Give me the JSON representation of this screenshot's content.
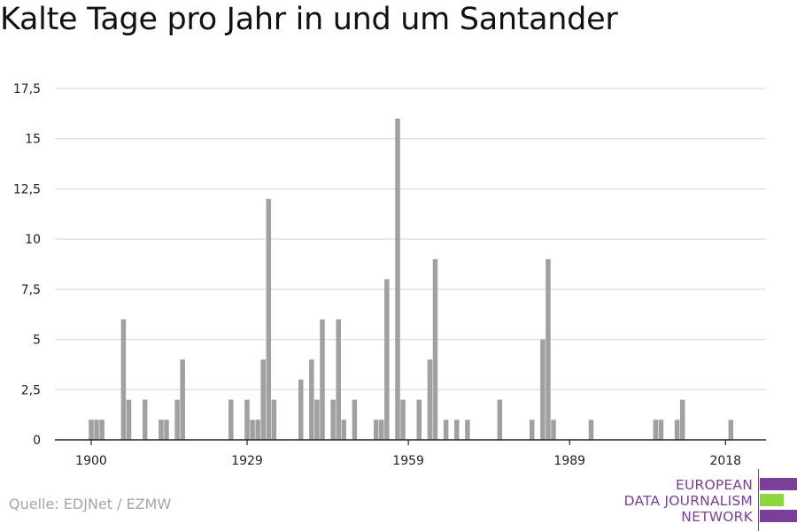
{
  "title": "Kalte Tage pro Jahr in und um Santander",
  "source": "Quelle: EDJNet / EZMW",
  "logo": {
    "lines": [
      "EUROPEAN",
      "DATA JOURNALISM",
      "NETWORK"
    ],
    "colors": {
      "purple": "#7b3f99",
      "green": "#8dd63c"
    }
  },
  "chart_data": {
    "type": "bar",
    "title": "Kalte Tage pro Jahr in und um Santander",
    "xlabel": "",
    "ylabel": "",
    "x_tick_labels": [
      "1900",
      "1929",
      "1959",
      "1989",
      "2018"
    ],
    "x_ticks": [
      1900,
      1929,
      1959,
      1989,
      2018
    ],
    "y_tick_labels": [
      "0",
      "2,5",
      "5",
      "7,5",
      "10",
      "12,5",
      "15",
      "17,5"
    ],
    "y_ticks": [
      0,
      2.5,
      5,
      7.5,
      10,
      12.5,
      15,
      17.5
    ],
    "ylim": [
      0,
      17.5
    ],
    "xlim": [
      1894,
      2021
    ],
    "grid": true,
    "bar_color": "#a0a0a0",
    "x": [
      1900,
      1901,
      1902,
      1906,
      1907,
      1910,
      1913,
      1914,
      1916,
      1917,
      1926,
      1929,
      1930,
      1931,
      1932,
      1933,
      1934,
      1939,
      1941,
      1942,
      1943,
      1945,
      1946,
      1947,
      1949,
      1953,
      1954,
      1955,
      1957,
      1958,
      1961,
      1963,
      1964,
      1966,
      1968,
      1970,
      1976,
      1982,
      1984,
      1985,
      1986,
      1993,
      2005,
      2006,
      2009,
      2010,
      2019
    ],
    "values": [
      1,
      1,
      1,
      6,
      2,
      2,
      1,
      1,
      2,
      4,
      2,
      2,
      1,
      1,
      4,
      12,
      2,
      3,
      4,
      2,
      6,
      2,
      6,
      1,
      2,
      1,
      1,
      8,
      16,
      2,
      2,
      4,
      9,
      1,
      1,
      1,
      2,
      1,
      5,
      9,
      1,
      1,
      1,
      1,
      1,
      2,
      1
    ]
  }
}
